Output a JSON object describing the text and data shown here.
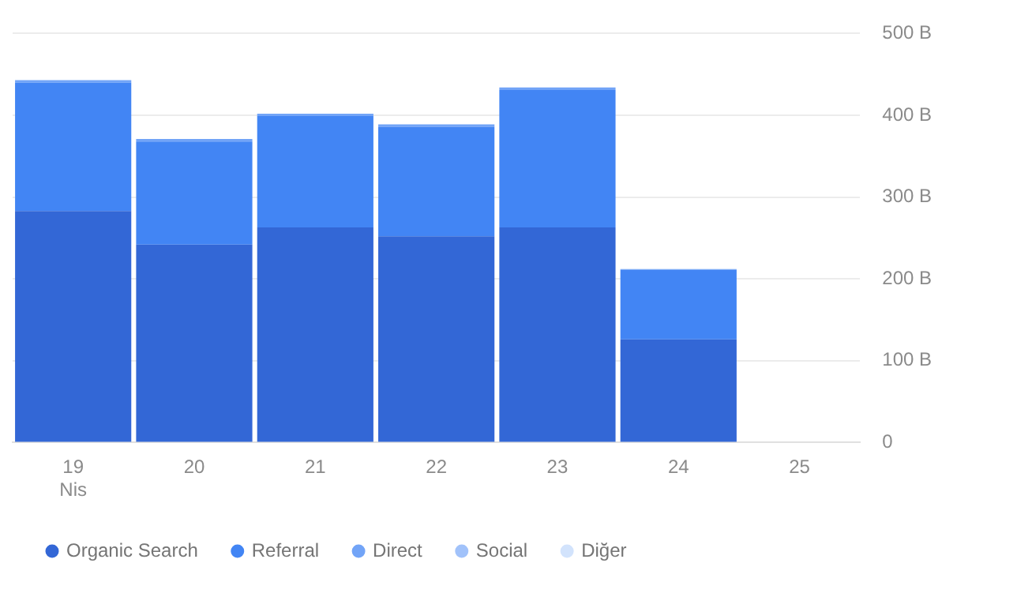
{
  "chart_data": {
    "type": "bar",
    "stacked": true,
    "categories": [
      "19\nNis",
      "20",
      "21",
      "22",
      "23",
      "24",
      "25"
    ],
    "series": [
      {
        "name": "Organic Search",
        "color": "#3367d6",
        "values": [
          283,
          242,
          263,
          252,
          263,
          126,
          null
        ]
      },
      {
        "name": "Referral",
        "color": "#4285f4",
        "values": [
          157,
          126,
          136,
          134,
          168,
          85,
          null
        ]
      },
      {
        "name": "Direct",
        "color": "#72a4f7",
        "values": [
          3,
          3,
          3,
          3,
          3,
          1,
          null
        ]
      },
      {
        "name": "Social",
        "color": "#a1c2fa",
        "values": [
          null,
          null,
          null,
          null,
          null,
          null,
          null
        ]
      },
      {
        "name": "Diğer",
        "color": "#d2e3fc",
        "values": [
          null,
          null,
          null,
          null,
          null,
          null,
          null
        ]
      }
    ],
    "ylim": [
      0,
      500
    ],
    "yticks": [
      0,
      {
        "value": 100,
        "label": "100 B"
      },
      {
        "value": 200,
        "label": "200 B"
      },
      {
        "value": 300,
        "label": "300 B"
      },
      {
        "value": 400,
        "label": "400 B"
      },
      {
        "value": 500,
        "label": "500 B"
      }
    ],
    "grid": "y",
    "legend": "bottom left"
  }
}
